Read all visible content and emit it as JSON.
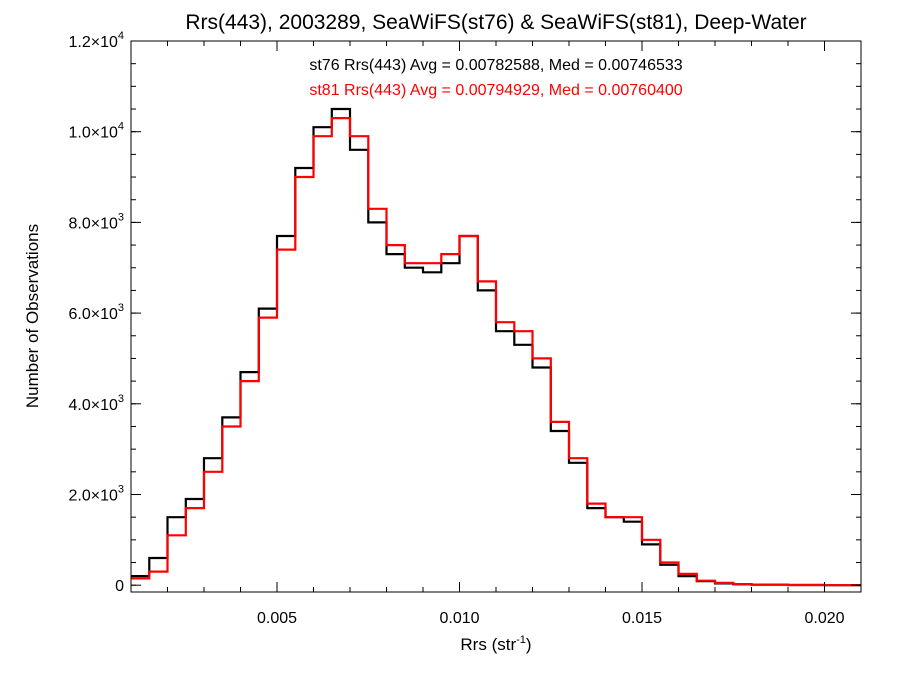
{
  "chart_data": {
    "type": "line",
    "title": "Rrs(443), 2003289, SeaWiFS(st76) & SeaWiFS(st81), Deep-Water",
    "xlabel": "Rrs (str",
    "xlabel_sup": "-1",
    "xlabel_suffix": ")",
    "ylabel": "Number of Observations",
    "xlim": [
      0.001,
      0.021
    ],
    "ylim": [
      -150,
      12000
    ],
    "grid": false,
    "x_ticks": [
      {
        "value": 0.005,
        "label": "0.005"
      },
      {
        "value": 0.01,
        "label": "0.010"
      },
      {
        "value": 0.015,
        "label": "0.015"
      },
      {
        "value": 0.02,
        "label": "0.020"
      }
    ],
    "y_ticks": [
      {
        "value": 0,
        "label": "0",
        "exp": ""
      },
      {
        "value": 2000,
        "label": "2.0×10",
        "exp": "3"
      },
      {
        "value": 4000,
        "label": "4.0×10",
        "exp": "3"
      },
      {
        "value": 6000,
        "label": "6.0×10",
        "exp": "3"
      },
      {
        "value": 8000,
        "label": "8.0×10",
        "exp": "3"
      },
      {
        "value": 10000,
        "label": "1.0×10",
        "exp": "4"
      },
      {
        "value": 12000,
        "label": "1.2×10",
        "exp": "4"
      }
    ],
    "annotations": [
      {
        "text": "st76 Rrs(443) Avg = 0.00782588, Med = 0.00746533",
        "color": "#000000"
      },
      {
        "text": "st81 Rrs(443) Avg = 0.00794929, Med = 0.00760400",
        "color": "#ff0000"
      }
    ],
    "series": [
      {
        "name": "st76",
        "color": "#000000",
        "x": [
          0.001,
          0.0015,
          0.002,
          0.0025,
          0.003,
          0.0035,
          0.004,
          0.0045,
          0.005,
          0.0055,
          0.006,
          0.0065,
          0.007,
          0.0075,
          0.008,
          0.0085,
          0.009,
          0.0095,
          0.01,
          0.0105,
          0.011,
          0.0115,
          0.012,
          0.0125,
          0.013,
          0.0135,
          0.014,
          0.0145,
          0.015,
          0.0155,
          0.016,
          0.0165,
          0.017,
          0.0175,
          0.018,
          0.019,
          0.02,
          0.021
        ],
        "y": [
          200,
          600,
          1500,
          1900,
          2800,
          3700,
          4700,
          6100,
          7700,
          9200,
          10100,
          10500,
          9600,
          8000,
          7300,
          7000,
          6900,
          7100,
          7700,
          6500,
          5600,
          5300,
          4800,
          3400,
          2700,
          1700,
          1500,
          1400,
          900,
          450,
          200,
          90,
          40,
          20,
          10,
          5,
          0,
          0
        ]
      },
      {
        "name": "st81",
        "color": "#ff0000",
        "x": [
          0.001,
          0.0015,
          0.002,
          0.0025,
          0.003,
          0.0035,
          0.004,
          0.0045,
          0.005,
          0.0055,
          0.006,
          0.0065,
          0.007,
          0.0075,
          0.008,
          0.0085,
          0.009,
          0.0095,
          0.01,
          0.0105,
          0.011,
          0.0115,
          0.012,
          0.0125,
          0.013,
          0.0135,
          0.014,
          0.0145,
          0.015,
          0.0155,
          0.016,
          0.0165,
          0.017,
          0.0175,
          0.018,
          0.019,
          0.02,
          0.021
        ],
        "y": [
          150,
          300,
          1100,
          1700,
          2500,
          3500,
          4500,
          5900,
          7400,
          9000,
          9900,
          10300,
          9900,
          8300,
          7500,
          7100,
          7100,
          7300,
          7700,
          6700,
          5800,
          5600,
          5000,
          3600,
          2800,
          1800,
          1500,
          1500,
          1000,
          500,
          250,
          100,
          50,
          25,
          10,
          5,
          0,
          0
        ]
      }
    ]
  }
}
